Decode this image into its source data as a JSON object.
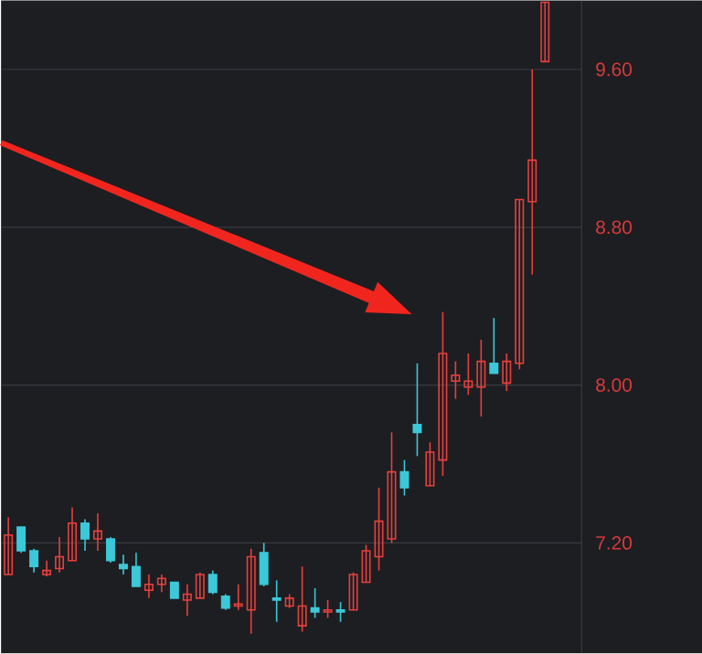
{
  "chart_data": {
    "type": "candlestick",
    "categories": [
      null,
      null,
      null,
      null,
      null,
      null,
      null,
      null,
      null,
      null,
      null,
      null,
      null,
      null,
      null,
      null,
      null,
      null,
      null,
      null,
      null,
      null,
      null,
      null,
      null,
      null,
      null,
      null,
      null,
      null,
      null,
      null,
      null,
      null,
      null,
      null,
      null,
      null,
      null,
      null,
      null,
      null,
      null
    ],
    "ohlc": [
      [
        7.04,
        7.33,
        7.04,
        7.24
      ],
      [
        7.28,
        7.28,
        7.15,
        7.16
      ],
      [
        7.16,
        7.17,
        7.05,
        7.08
      ],
      [
        7.04,
        7.11,
        7.03,
        7.06
      ],
      [
        7.07,
        7.23,
        7.05,
        7.13
      ],
      [
        7.11,
        7.38,
        7.11,
        7.3
      ],
      [
        7.3,
        7.32,
        7.16,
        7.22
      ],
      [
        7.22,
        7.35,
        7.16,
        7.26
      ],
      [
        7.22,
        7.23,
        7.1,
        7.11
      ],
      [
        7.09,
        7.14,
        7.04,
        7.07
      ],
      [
        7.08,
        7.15,
        6.98,
        6.98
      ],
      [
        6.96,
        7.04,
        6.92,
        6.99
      ],
      [
        6.99,
        7.04,
        6.95,
        7.02
      ],
      [
        7.0,
        7.0,
        6.92,
        6.92
      ],
      [
        6.91,
        6.99,
        6.83,
        6.94
      ],
      [
        6.92,
        7.05,
        6.92,
        7.04
      ],
      [
        7.04,
        7.06,
        6.94,
        6.95
      ],
      [
        6.93,
        6.94,
        6.86,
        6.87
      ],
      [
        6.88,
        6.99,
        6.86,
        6.89
      ],
      [
        6.86,
        7.17,
        6.74,
        7.13
      ],
      [
        7.15,
        7.2,
        6.98,
        6.99
      ],
      [
        6.92,
        7.01,
        6.8,
        6.91
      ],
      [
        6.88,
        6.94,
        6.87,
        6.92
      ],
      [
        6.78,
        7.08,
        6.75,
        6.88
      ],
      [
        6.87,
        6.97,
        6.82,
        6.85
      ],
      [
        6.85,
        6.91,
        6.82,
        6.86
      ],
      [
        6.86,
        6.9,
        6.8,
        6.85
      ],
      [
        6.86,
        7.05,
        6.86,
        7.04
      ],
      [
        7.0,
        7.19,
        7.0,
        7.16
      ],
      [
        7.13,
        7.48,
        7.06,
        7.31
      ],
      [
        7.22,
        7.76,
        7.2,
        7.56
      ],
      [
        7.56,
        7.62,
        7.44,
        7.48
      ],
      [
        7.8,
        8.11,
        7.64,
        7.76
      ],
      [
        7.49,
        7.71,
        7.49,
        7.66
      ],
      [
        7.62,
        8.37,
        7.54,
        8.16
      ],
      [
        8.02,
        8.12,
        7.93,
        8.05
      ],
      [
        7.99,
        8.16,
        7.95,
        8.02
      ],
      [
        7.99,
        8.23,
        7.84,
        8.12
      ],
      [
        8.11,
        8.34,
        8.06,
        8.06
      ],
      [
        8.01,
        8.16,
        7.97,
        8.12
      ],
      [
        8.11,
        8.94,
        8.08,
        8.94
      ],
      [
        8.93,
        9.6,
        8.56,
        9.14
      ],
      [
        9.64,
        9.94,
        9.64,
        9.94
      ]
    ],
    "colors": [
      "#e8403c",
      "#3cc8d8",
      "#3cc8d8",
      "#e8403c",
      "#e8403c",
      "#e8403c",
      "#3cc8d8",
      "#e8403c",
      "#3cc8d8",
      "#3cc8d8",
      "#3cc8d8",
      "#e8403c",
      "#e8403c",
      "#3cc8d8",
      "#e8403c",
      "#e8403c",
      "#3cc8d8",
      "#3cc8d8",
      "#e8403c",
      "#e8403c",
      "#3cc8d8",
      "#3cc8d8",
      "#e8403c",
      "#e8403c",
      "#3cc8d8",
      "#e8403c",
      "#3cc8d8",
      "#e8403c",
      "#e8403c",
      "#e8403c",
      "#e8403c",
      "#3cc8d8",
      "#3cc8d8",
      "#e8403c",
      "#e8403c",
      "#e8403c",
      "#e8403c",
      "#e8403c",
      "#3cc8d8",
      "#e8403c",
      "#e8403c",
      "#e8403c",
      "#e8403c"
    ],
    "ylim": [
      6.64,
      9.95
    ],
    "yticks": [
      {
        "value": 7.2,
        "label": "7.20"
      },
      {
        "value": 8.0,
        "label": "8.00"
      },
      {
        "value": 8.8,
        "label": "8.80"
      },
      {
        "value": 9.6,
        "label": "9.60"
      }
    ],
    "grid": "y",
    "tick_labels": "y"
  }
}
